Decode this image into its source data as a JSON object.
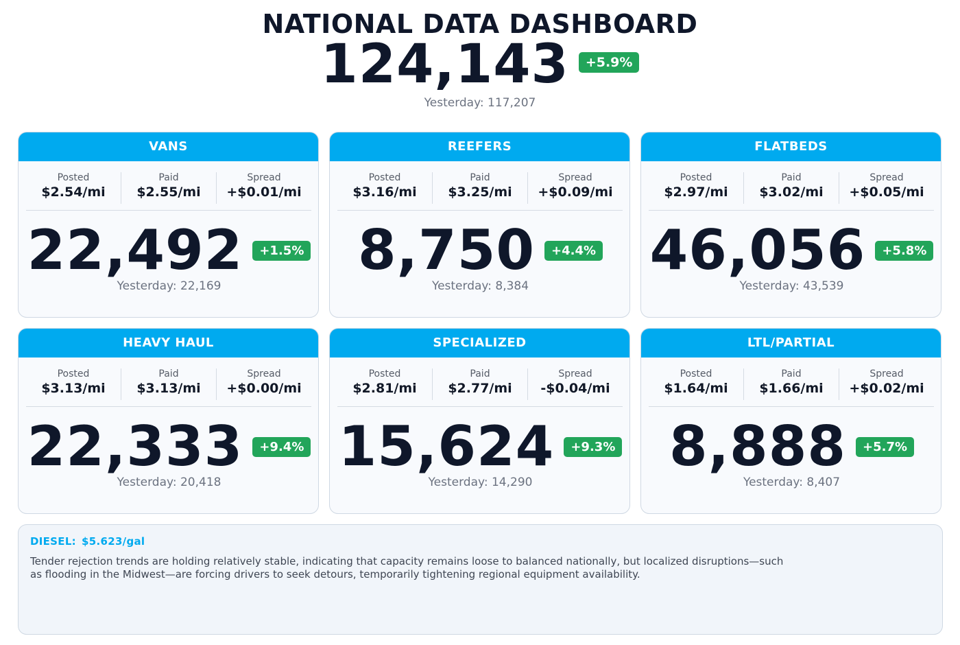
{
  "header": {
    "title": "NATIONAL DATA DASHBOARD",
    "total": "124,143",
    "change": "+5.9%",
    "yesterday": "Yesterday: 117,207"
  },
  "stat_labels": {
    "posted": "Posted",
    "paid": "Paid",
    "spread": "Spread"
  },
  "cards": [
    {
      "title": "VANS",
      "posted": "$2.54/mi",
      "paid": "$2.55/mi",
      "spread": "+$0.01/mi",
      "count": "22,492",
      "change": "+1.5%",
      "yesterday": "Yesterday: 22,169"
    },
    {
      "title": "REEFERS",
      "posted": "$3.16/mi",
      "paid": "$3.25/mi",
      "spread": "+$0.09/mi",
      "count": "8,750",
      "change": "+4.4%",
      "yesterday": "Yesterday: 8,384"
    },
    {
      "title": "FLATBEDS",
      "posted": "$2.97/mi",
      "paid": "$3.02/mi",
      "spread": "+$0.05/mi",
      "count": "46,056",
      "change": "+5.8%",
      "yesterday": "Yesterday: 43,539"
    },
    {
      "title": "HEAVY HAUL",
      "posted": "$3.13/mi",
      "paid": "$3.13/mi",
      "spread": "+$0.00/mi",
      "count": "22,333",
      "change": "+9.4%",
      "yesterday": "Yesterday: 20,418"
    },
    {
      "title": "SPECIALIZED",
      "posted": "$2.81/mi",
      "paid": "$2.77/mi",
      "spread": "-$0.04/mi",
      "count": "15,624",
      "change": "+9.3%",
      "yesterday": "Yesterday: 14,290"
    },
    {
      "title": "LTL/PARTIAL",
      "posted": "$1.64/mi",
      "paid": "$1.66/mi",
      "spread": "+$0.02/mi",
      "count": "8,888",
      "change": "+5.7%",
      "yesterday": "Yesterday: 8,407"
    }
  ],
  "note": {
    "diesel_label": "DIESEL:",
    "diesel_value": "$5.623/gal",
    "text": "Tender rejection trends are holding relatively stable, indicating that capacity remains loose to balanced nationally, but localized disruptions—such as flooding in the Midwest—are forcing drivers to seek detours, temporarily tightening regional equipment availability."
  },
  "colors": {
    "accent": "#00aaef",
    "positive": "#22a55a",
    "text_dark": "#0f172a",
    "text_muted": "#6b7280"
  }
}
